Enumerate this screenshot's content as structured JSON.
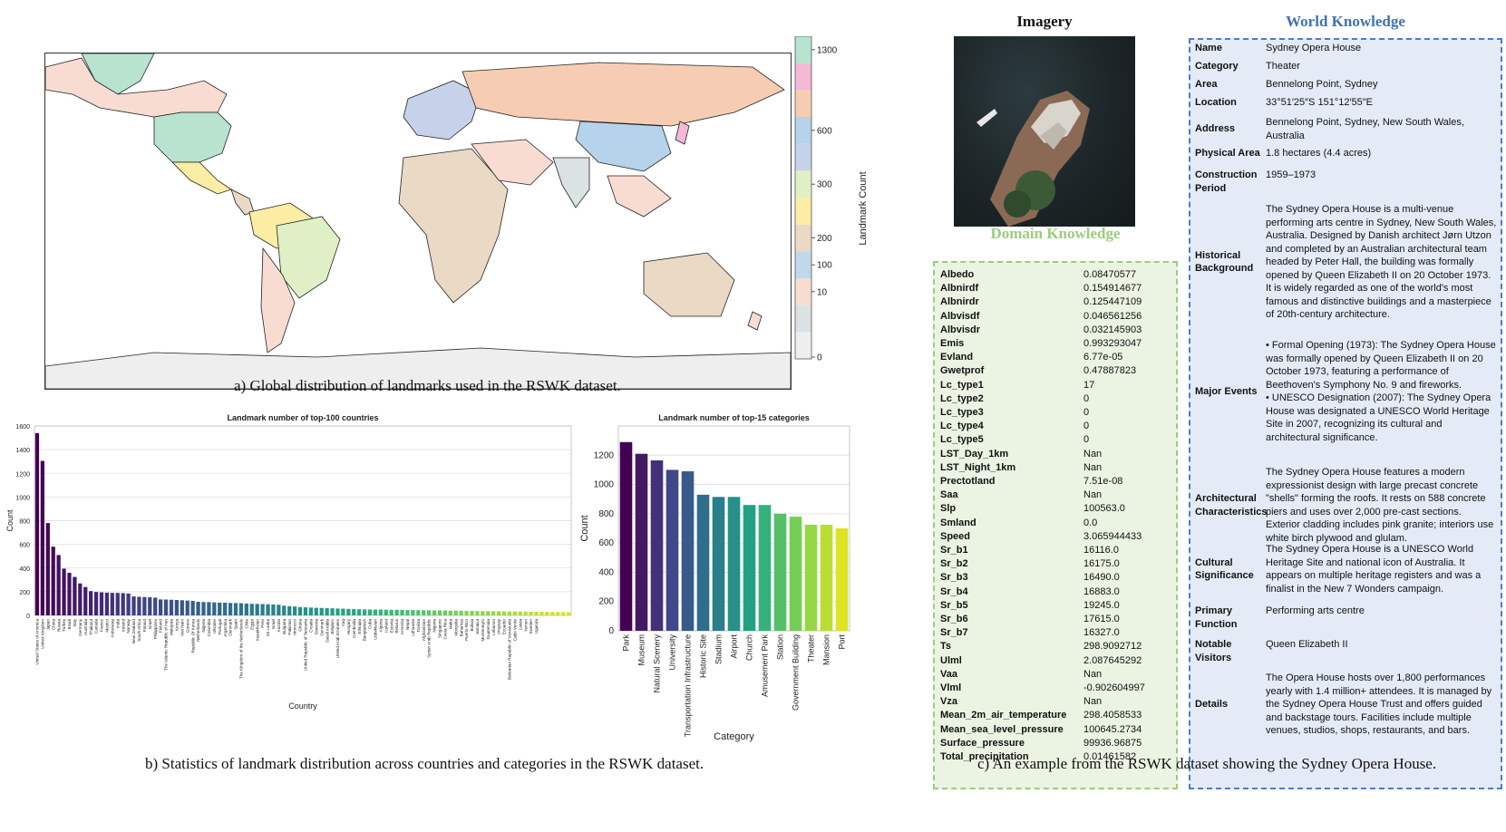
{
  "captions": {
    "a": "a) Global distribution of landmarks used in the RSWK dataset.",
    "b": "b) Statistics of landmark distribution across countries and categories in the RSWK dataset.",
    "c": "c) An example from the RSWK dataset showing the Sydney Opera House."
  },
  "colorbar": {
    "label": "Landmark Count",
    "ticks": [
      "0",
      "10",
      "100",
      "200",
      "300",
      "600",
      "1300"
    ],
    "colors": [
      "#eeeeee",
      "#dbe2e4",
      "#f8dcd2",
      "#c0d8ea",
      "#ead9c4",
      "#fbeda3",
      "#dff0c7",
      "#c6d2ea",
      "#b5d3ea",
      "#f6cdb2",
      "#f5b8d6",
      "#b7e3cf"
    ]
  },
  "imagery_title": "Imagery",
  "domain_title": "Domain Knowledge",
  "world_title": "World Knowledge",
  "domain_knowledge": [
    {
      "k": "Albedo",
      "v": "0.08470577"
    },
    {
      "k": "Albnirdf",
      "v": "0.154914677"
    },
    {
      "k": "Albnirdr",
      "v": "0.125447109"
    },
    {
      "k": "Albvisdf",
      "v": "0.046561256"
    },
    {
      "k": "Albvisdr",
      "v": "0.032145903"
    },
    {
      "k": "Emis",
      "v": "0.993293047"
    },
    {
      "k": "Evland",
      "v": "6.77e-05"
    },
    {
      "k": "Gwetprof",
      "v": "0.47887823"
    },
    {
      "k": "Lc_type1",
      "v": "17"
    },
    {
      "k": "Lc_type2",
      "v": "0"
    },
    {
      "k": "Lc_type3",
      "v": "0"
    },
    {
      "k": "Lc_type4",
      "v": "0"
    },
    {
      "k": "Lc_type5",
      "v": "0"
    },
    {
      "k": "LST_Day_1km",
      "v": "Nan"
    },
    {
      "k": "LST_Night_1km",
      "v": "Nan"
    },
    {
      "k": "Prectotland",
      "v": "7.51e-08"
    },
    {
      "k": "Saa",
      "v": "Nan"
    },
    {
      "k": "Slp",
      "v": "100563.0"
    },
    {
      "k": "Smland",
      "v": "0.0"
    },
    {
      "k": "Speed",
      "v": "3.065944433"
    },
    {
      "k": "Sr_b1",
      "v": "16116.0"
    },
    {
      "k": "Sr_b2",
      "v": "16175.0"
    },
    {
      "k": "Sr_b3",
      "v": "16490.0"
    },
    {
      "k": "Sr_b4",
      "v": "16883.0"
    },
    {
      "k": "Sr_b5",
      "v": "19245.0"
    },
    {
      "k": "Sr_b6",
      "v": "17615.0"
    },
    {
      "k": "Sr_b7",
      "v": "16327.0"
    },
    {
      "k": "Ts",
      "v": "298.9092712"
    },
    {
      "k": "Ulml",
      "v": "2.087645292"
    },
    {
      "k": "Vaa",
      "v": "Nan"
    },
    {
      "k": "Vlml",
      "v": "-0.902604997"
    },
    {
      "k": "Vza",
      "v": "Nan"
    },
    {
      "k": "Mean_2m_air_temperature",
      "v": "298.4058533"
    },
    {
      "k": "Mean_sea_level_pressure",
      "v": "100645.2734"
    },
    {
      "k": "Surface_pressure",
      "v": "99936.96875"
    },
    {
      "k": "Total_precipitation",
      "v": "0.01461582"
    }
  ],
  "world_knowledge": [
    {
      "k": "Name",
      "v": "Sydney Opera House"
    },
    {
      "k": "Category",
      "v": "Theater"
    },
    {
      "k": "Area",
      "v": "Bennelong Point, Sydney"
    },
    {
      "k": "Location",
      "v": "33°51′25″S 151°12′55″E"
    },
    {
      "k": "Address",
      "v": "Bennelong Point, Sydney, New South Wales, Australia"
    },
    {
      "k": "Physical Area",
      "v": "1.8 hectares (4.4 acres)"
    },
    {
      "k": "Construction Period",
      "v": "1959–1973"
    },
    {
      "k": "Historical Background",
      "v": "The Sydney Opera House is a multi-venue performing arts centre in Sydney, New South Wales, Australia. Designed by Danish architect Jørn Utzon and completed by an Australian architectural team headed by Peter Hall, the building was formally opened by Queen Elizabeth II on 20 October 1973. It is widely regarded as one of the world's most famous and distinctive buildings and a masterpiece of 20th-century architecture."
    },
    {
      "k": "Major Events",
      "v": "• Formal Opening (1973): The Sydney Opera House was formally opened by Queen Elizabeth II on 20 October 1973, featuring a performance of Beethoven's Symphony No. 9 and fireworks.\n• UNESCO Designation (2007): The Sydney Opera House was designated a UNESCO World Heritage Site in 2007, recognizing its cultural and architectural significance."
    },
    {
      "k": "Architectural Characteristics",
      "v": "The Sydney Opera House features a modern expressionist design with large precast concrete \"shells\" forming the roofs. It rests on 588 concrete piers and uses over 2,000 pre-cast sections. Exterior cladding includes pink granite; interiors use white birch plywood and glulam."
    },
    {
      "k": "Cultural Significance",
      "v": "The Sydney Opera House is a UNESCO World Heritage Site and national icon of Australia. It appears on multiple heritage registers and was a finalist in the New 7 Wonders campaign."
    },
    {
      "k": "Primary Function",
      "v": "Performing arts centre"
    },
    {
      "k": "Notable Visitors",
      "v": "Queen Elizabeth II"
    },
    {
      "k": "Details",
      "v": "The Opera House hosts over 1,800 performances yearly with 1.4 million+ attendees. It is managed by the Sydney Opera House Trust and offers guided and backstage tours. Facilities include multiple venues, studios, shops, restaurants, and bars."
    }
  ],
  "chart_data": [
    {
      "type": "bar",
      "title": "Landmark number of top-100 countries",
      "xlabel": "Country",
      "ylabel": "Count",
      "ylim": [
        0,
        1600
      ],
      "yticks": [
        0,
        200,
        400,
        600,
        800,
        1000,
        1200,
        1400,
        1600
      ],
      "grid": true,
      "values": [
        1540,
        1305,
        780,
        580,
        510,
        395,
        360,
        325,
        270,
        240,
        205,
        198,
        195,
        192,
        190,
        190,
        188,
        185,
        160,
        157,
        155,
        153,
        150,
        135,
        134,
        132,
        130,
        128,
        125,
        122,
        115,
        113,
        112,
        110,
        108,
        107,
        105,
        104,
        103,
        100,
        98,
        97,
        96,
        94,
        92,
        90,
        82,
        78,
        75,
        70,
        68,
        66,
        64,
        63,
        61,
        60,
        58,
        57,
        55,
        53,
        52,
        51,
        50,
        49,
        49,
        48,
        47,
        47,
        46,
        45,
        45,
        44,
        44,
        43,
        42,
        42,
        41,
        40,
        40,
        39,
        38,
        38,
        37,
        36,
        36,
        35,
        35,
        34,
        33,
        33,
        32,
        32,
        31,
        31,
        30,
        30,
        29,
        29,
        28,
        28
      ],
      "categories": [
        "United States of America",
        "United Kingdom",
        "Japan",
        "China",
        "Russia",
        "Turkey",
        "Brazil",
        "Italy",
        "Germany",
        "Australia",
        "Thailand",
        "Canada",
        "France",
        "Mexico",
        "Indonesia",
        "India",
        "Ireland",
        "Norway",
        "New Zealand",
        "South Africa",
        "Poland",
        "Israel",
        "Philippines",
        "Finland",
        "The Islamic Republic of Iran",
        "Malaysia",
        "Kenya",
        "Viet Nam",
        "Greece",
        "Republic Of Korea",
        "Netherlands",
        "Nigeria",
        "Colombia",
        "Ukraine",
        "Portugal",
        "Argentina",
        "Denmark",
        "Spain",
        "The Kingdom of the Netherlands",
        "Chile",
        "Egypt",
        "Kazakhstan",
        "Peru",
        "Sri Lanka",
        "Israel",
        "Austria",
        "Bulgaria",
        "Pakistan",
        "Morocco",
        "Ghana",
        "United Republic of Tanzania",
        "Croatia",
        "Slovenia",
        "Denmark",
        "Saudi Arabia",
        "Belgium",
        "United Arab Emirates",
        "Iraq",
        "Hungary",
        "Cambodia",
        "Ethiopia",
        "Bangladesh",
        "Cuba",
        "Uzbekistan",
        "Algeria",
        "Iceland",
        "Estonia",
        "Belarus",
        "Armenia",
        "Nepal",
        "Lithuania",
        "Tunisia",
        "Afghanistan",
        "Syrian Arab Republic",
        "Nigeria",
        "Singapore",
        "Costa Rica",
        "Malta",
        "Mongolia",
        "Bahamas",
        "Puerto Rico",
        "Bolivia",
        "Jamaica",
        "Montenegro",
        "Guatemala",
        "Lebanon",
        "Uruguay",
        "Ecuador",
        "Bolivarian Republic of Venezuela",
        "Cabo Verde",
        "Latvia",
        "Yemen",
        "Sweden",
        "Uganda",
        "",
        "",
        "",
        "",
        "",
        ""
      ]
    },
    {
      "type": "bar",
      "title": "Landmark number of top-15 categories",
      "xlabel": "Category",
      "ylabel": "Count",
      "ylim": [
        0,
        1400
      ],
      "yticks": [
        0,
        200,
        400,
        600,
        800,
        1000,
        1200
      ],
      "grid": true,
      "categories": [
        "Park",
        "Museum",
        "Natural Scenery",
        "University",
        "Transportation Infrastructure",
        "Historic Site",
        "Stadium",
        "Airport",
        "Church",
        "Amusement Park",
        "Station",
        "Government Building",
        "Theater",
        "Mansion",
        "Port"
      ],
      "values": [
        1290,
        1210,
        1165,
        1100,
        1090,
        930,
        915,
        915,
        860,
        860,
        800,
        780,
        725,
        725,
        700
      ]
    }
  ]
}
